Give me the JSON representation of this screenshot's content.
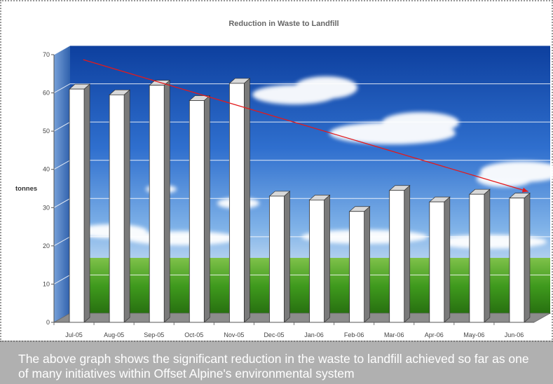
{
  "chart_data": {
    "type": "bar",
    "title": "Reduction in Waste to Landfill",
    "ylabel": "tonnes",
    "xlabel": "",
    "categories": [
      "Jul-05",
      "Aug-05",
      "Sep-05",
      "Oct-05",
      "Nov-05",
      "Dec-05",
      "Jan-06",
      "Feb-06",
      "Mar-06",
      "Apr-06",
      "May-06",
      "Jun-06"
    ],
    "values": [
      61,
      59.5,
      62,
      58,
      62.5,
      33,
      32,
      29,
      34.5,
      31.5,
      33.5,
      32.5
    ],
    "ylim": [
      0,
      70
    ],
    "yticks": [
      0,
      10,
      20,
      30,
      40,
      50,
      60,
      70
    ],
    "grid": true,
    "trendline": {
      "start": 67.5,
      "end": 33,
      "color": "#e31a1c"
    },
    "bar_color": "#ffffff"
  },
  "caption": "The above graph shows the significant reduction in the waste to landfill achieved so far as one of many initiatives within Offset Alpine's  environmental system"
}
